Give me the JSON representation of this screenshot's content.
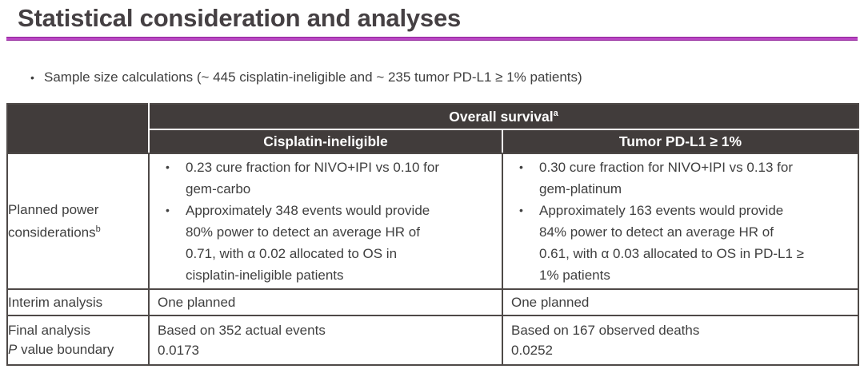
{
  "slide": {
    "title": "Statistical consideration and analyses",
    "intro_bullet": "Sample size calculations (~ 445 cisplatin-ineligible and ~ 235 tumor PD-L1 ≥ 1% patients)"
  },
  "glyphs": {
    "bullet": "•"
  },
  "colors": {
    "accent_rule": "#a32fae",
    "header_bg": "#413c3b",
    "header_text": "#ffffff",
    "body_text": "#3f3f3f",
    "table_border": "#4e4947"
  },
  "table": {
    "header": {
      "overall": {
        "label": "Overall survival",
        "sup": "a"
      },
      "col_cisplatin": "Cisplatin-ineligible",
      "col_pdl1": "Tumor PD-L1 ≥ 1%"
    },
    "rows": {
      "power": {
        "label": {
          "text": "Planned power considerations",
          "sup": "b"
        },
        "cisplatin": [
          "0.23 cure fraction for NIVO+IPI vs 0.10 for gem-carbo",
          "Approximately 348 events would provide 80% power to detect an average HR of 0.71, with α 0.02 allocated to OS in cisplatin-ineligible patients"
        ],
        "pdl1": [
          "0.30 cure fraction for NIVO+IPI vs 0.13 for gem-platinum",
          "Approximately 163 events would provide 84% power to detect an average HR of 0.61, with α 0.03 allocated to OS in PD-L1 ≥ 1% patients"
        ]
      },
      "interim": {
        "label": "Interim analysis",
        "cisplatin": "One planned",
        "pdl1": "One planned"
      },
      "final": {
        "label_line1": "Final analysis",
        "label_line2_italic": "P",
        "label_line2_rest": " value boundary",
        "cisplatin_line1": "Based on 352 actual events",
        "cisplatin_line2": "0.0173",
        "pdl1_line1": "Based on 167 observed deaths",
        "pdl1_line2": "0.0252"
      }
    }
  }
}
